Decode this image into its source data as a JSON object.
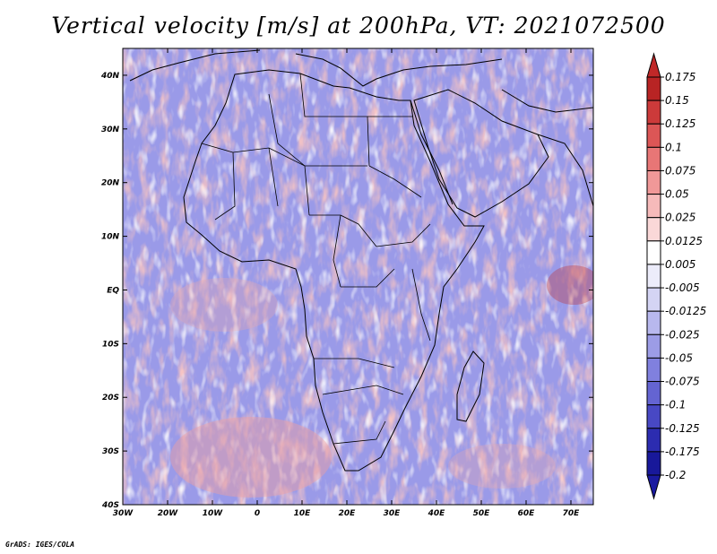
{
  "title": "Vertical velocity [m/s] at 200hPa, VT: 2021072500",
  "credit": "GrADS: IGES/COLA",
  "map": {
    "lon_range": [
      -30,
      75
    ],
    "lat_range": [
      -40,
      45
    ],
    "lat_ticks": [
      {
        "value": 40,
        "label": "40N"
      },
      {
        "value": 30,
        "label": "30N"
      },
      {
        "value": 20,
        "label": "20N"
      },
      {
        "value": 10,
        "label": "10N"
      },
      {
        "value": 0,
        "label": "EQ"
      },
      {
        "value": -10,
        "label": "10S"
      },
      {
        "value": -20,
        "label": "20S"
      },
      {
        "value": -30,
        "label": "30S"
      },
      {
        "value": -40,
        "label": "40S"
      }
    ],
    "lon_ticks": [
      {
        "value": -30,
        "label": "30W"
      },
      {
        "value": -20,
        "label": "20W"
      },
      {
        "value": -10,
        "label": "10W"
      },
      {
        "value": 0,
        "label": "0"
      },
      {
        "value": 10,
        "label": "10E"
      },
      {
        "value": 20,
        "label": "20E"
      },
      {
        "value": 30,
        "label": "30E"
      },
      {
        "value": 40,
        "label": "40E"
      },
      {
        "value": 50,
        "label": "50E"
      },
      {
        "value": 60,
        "label": "60E"
      },
      {
        "value": 70,
        "label": "70E"
      }
    ]
  },
  "colorbar": {
    "levels": [
      {
        "label": "0.175",
        "color": "#a01818"
      },
      {
        "label": "0.15",
        "color": "#b82424"
      },
      {
        "label": "0.125",
        "color": "#cc3a3a"
      },
      {
        "label": "0.1",
        "color": "#dc5656"
      },
      {
        "label": "0.075",
        "color": "#e87676"
      },
      {
        "label": "0.05",
        "color": "#f09898"
      },
      {
        "label": "0.025",
        "color": "#f6baba"
      },
      {
        "label": "0.0125",
        "color": "#fad8d8"
      },
      {
        "label": "0.005",
        "color": "#ffffff"
      },
      {
        "label": "-0.005",
        "color": "#ececfa"
      },
      {
        "label": "-0.0125",
        "color": "#d4d4f4"
      },
      {
        "label": "-0.025",
        "color": "#b8b8ee"
      },
      {
        "label": "-0.05",
        "color": "#9c9ce6"
      },
      {
        "label": "-0.075",
        "color": "#8080de"
      },
      {
        "label": "-0.1",
        "color": "#6464d2"
      },
      {
        "label": "-0.125",
        "color": "#4848c4"
      },
      {
        "label": "-0.175",
        "color": "#2c2cb0"
      },
      {
        "label": "-0.2",
        "color": "#18189a"
      }
    ],
    "top_color": "#c02828",
    "bottom_color": "#1a1aa0"
  }
}
